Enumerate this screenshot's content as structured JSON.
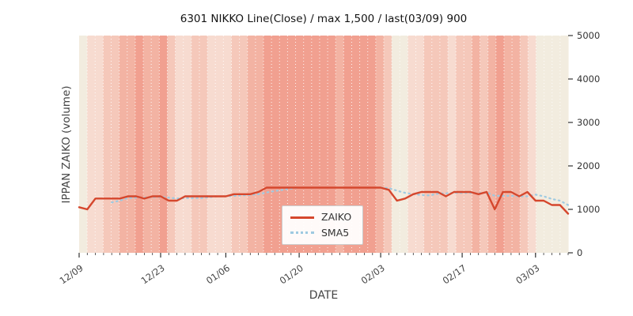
{
  "title": "6301 NIKKO Line(Close) / max 1,500 / last(03/09) 900",
  "axes": {
    "x_label": "DATE",
    "y_label": "IPPAN ZAIKO (volume)",
    "y_ticks": [
      0,
      1000,
      2000,
      3000,
      4000,
      5000
    ],
    "x_ticks": [
      "12/09",
      "12/23",
      "01/06",
      "01/20",
      "02/03",
      "02/17",
      "03/03"
    ]
  },
  "legend": {
    "entries": [
      {
        "label": "ZAIKO",
        "color": "#d5472d",
        "style": "solid"
      },
      {
        "label": "SMA5",
        "color": "#9ecae1",
        "style": "dotted"
      }
    ]
  },
  "chart_data": {
    "type": "line",
    "title": "6301 NIKKO Line(Close) / max 1,500 / last(03/09) 900",
    "xlabel": "DATE",
    "ylabel": "IPPAN ZAIKO (volume)",
    "ylim": [
      0,
      5000
    ],
    "max_value": 1500,
    "last_date": "03/09",
    "last_value": 900,
    "x": [
      "12/09",
      "12/12",
      "12/13",
      "12/14",
      "12/15",
      "12/16",
      "12/19",
      "12/20",
      "12/21",
      "12/22",
      "12/23",
      "12/26",
      "12/27",
      "12/28",
      "12/29",
      "12/30",
      "01/04",
      "01/05",
      "01/06",
      "01/10",
      "01/11",
      "01/12",
      "01/13",
      "01/16",
      "01/17",
      "01/18",
      "01/19",
      "01/20",
      "01/23",
      "01/24",
      "01/25",
      "01/26",
      "01/27",
      "01/30",
      "01/31",
      "02/01",
      "02/02",
      "02/03",
      "02/06",
      "02/07",
      "02/08",
      "02/09",
      "02/10",
      "02/13",
      "02/14",
      "02/15",
      "02/16",
      "02/17",
      "02/20",
      "02/21",
      "02/22",
      "02/24",
      "02/27",
      "02/28",
      "03/01",
      "03/02",
      "03/03",
      "03/06",
      "03/07",
      "03/08",
      "03/09"
    ],
    "series": [
      {
        "name": "ZAIKO",
        "color": "#d5472d",
        "style": "solid",
        "values": [
          1050,
          1000,
          1250,
          1250,
          1250,
          1250,
          1300,
          1300,
          1250,
          1300,
          1300,
          1200,
          1200,
          1300,
          1300,
          1300,
          1300,
          1300,
          1300,
          1350,
          1350,
          1350,
          1400,
          1500,
          1500,
          1500,
          1500,
          1500,
          1500,
          1500,
          1500,
          1500,
          1500,
          1500,
          1500,
          1500,
          1500,
          1500,
          1450,
          1200,
          1250,
          1350,
          1400,
          1400,
          1400,
          1300,
          1400,
          1400,
          1400,
          1350,
          1400,
          1000,
          1400,
          1400,
          1300,
          1400,
          1200,
          1200,
          1100,
          1100,
          900
        ]
      },
      {
        "name": "SMA5",
        "color": "#9ecae1",
        "style": "dotted",
        "values": [
          null,
          null,
          null,
          null,
          1160,
          1200,
          1260,
          1270,
          1270,
          1280,
          1290,
          1270,
          1250,
          1260,
          1260,
          1260,
          1280,
          1300,
          1300,
          1310,
          1320,
          1330,
          1350,
          1390,
          1420,
          1450,
          1480,
          1500,
          1500,
          1500,
          1500,
          1500,
          1500,
          1500,
          1500,
          1500,
          1500,
          1500,
          1490,
          1430,
          1380,
          1350,
          1330,
          1320,
          1360,
          1370,
          1380,
          1380,
          1380,
          1370,
          1390,
          1310,
          1310,
          1310,
          1300,
          1300,
          1340,
          1300,
          1240,
          1200,
          1100
        ]
      }
    ],
    "background": {
      "description": "per-day vertical intensity bands, cream (0) to red (4)",
      "palette": [
        "#f2ecdf",
        "#f7dbd0",
        "#f5c8ba",
        "#f3b3a3",
        "#f1a090"
      ],
      "levels": [
        0,
        1,
        1,
        2,
        2,
        3,
        3,
        4,
        3,
        3,
        4,
        2,
        1,
        1,
        2,
        2,
        1,
        1,
        1,
        2,
        2,
        3,
        3,
        4,
        4,
        4,
        4,
        4,
        4,
        4,
        4,
        4,
        3,
        4,
        4,
        4,
        4,
        3,
        2,
        0,
        0,
        1,
        1,
        2,
        2,
        2,
        1,
        2,
        2,
        3,
        2,
        3,
        4,
        3,
        3,
        2,
        1,
        0,
        0,
        0,
        0
      ]
    },
    "grid": "white dotted vertical lines per day",
    "legend_position": "lower center"
  }
}
